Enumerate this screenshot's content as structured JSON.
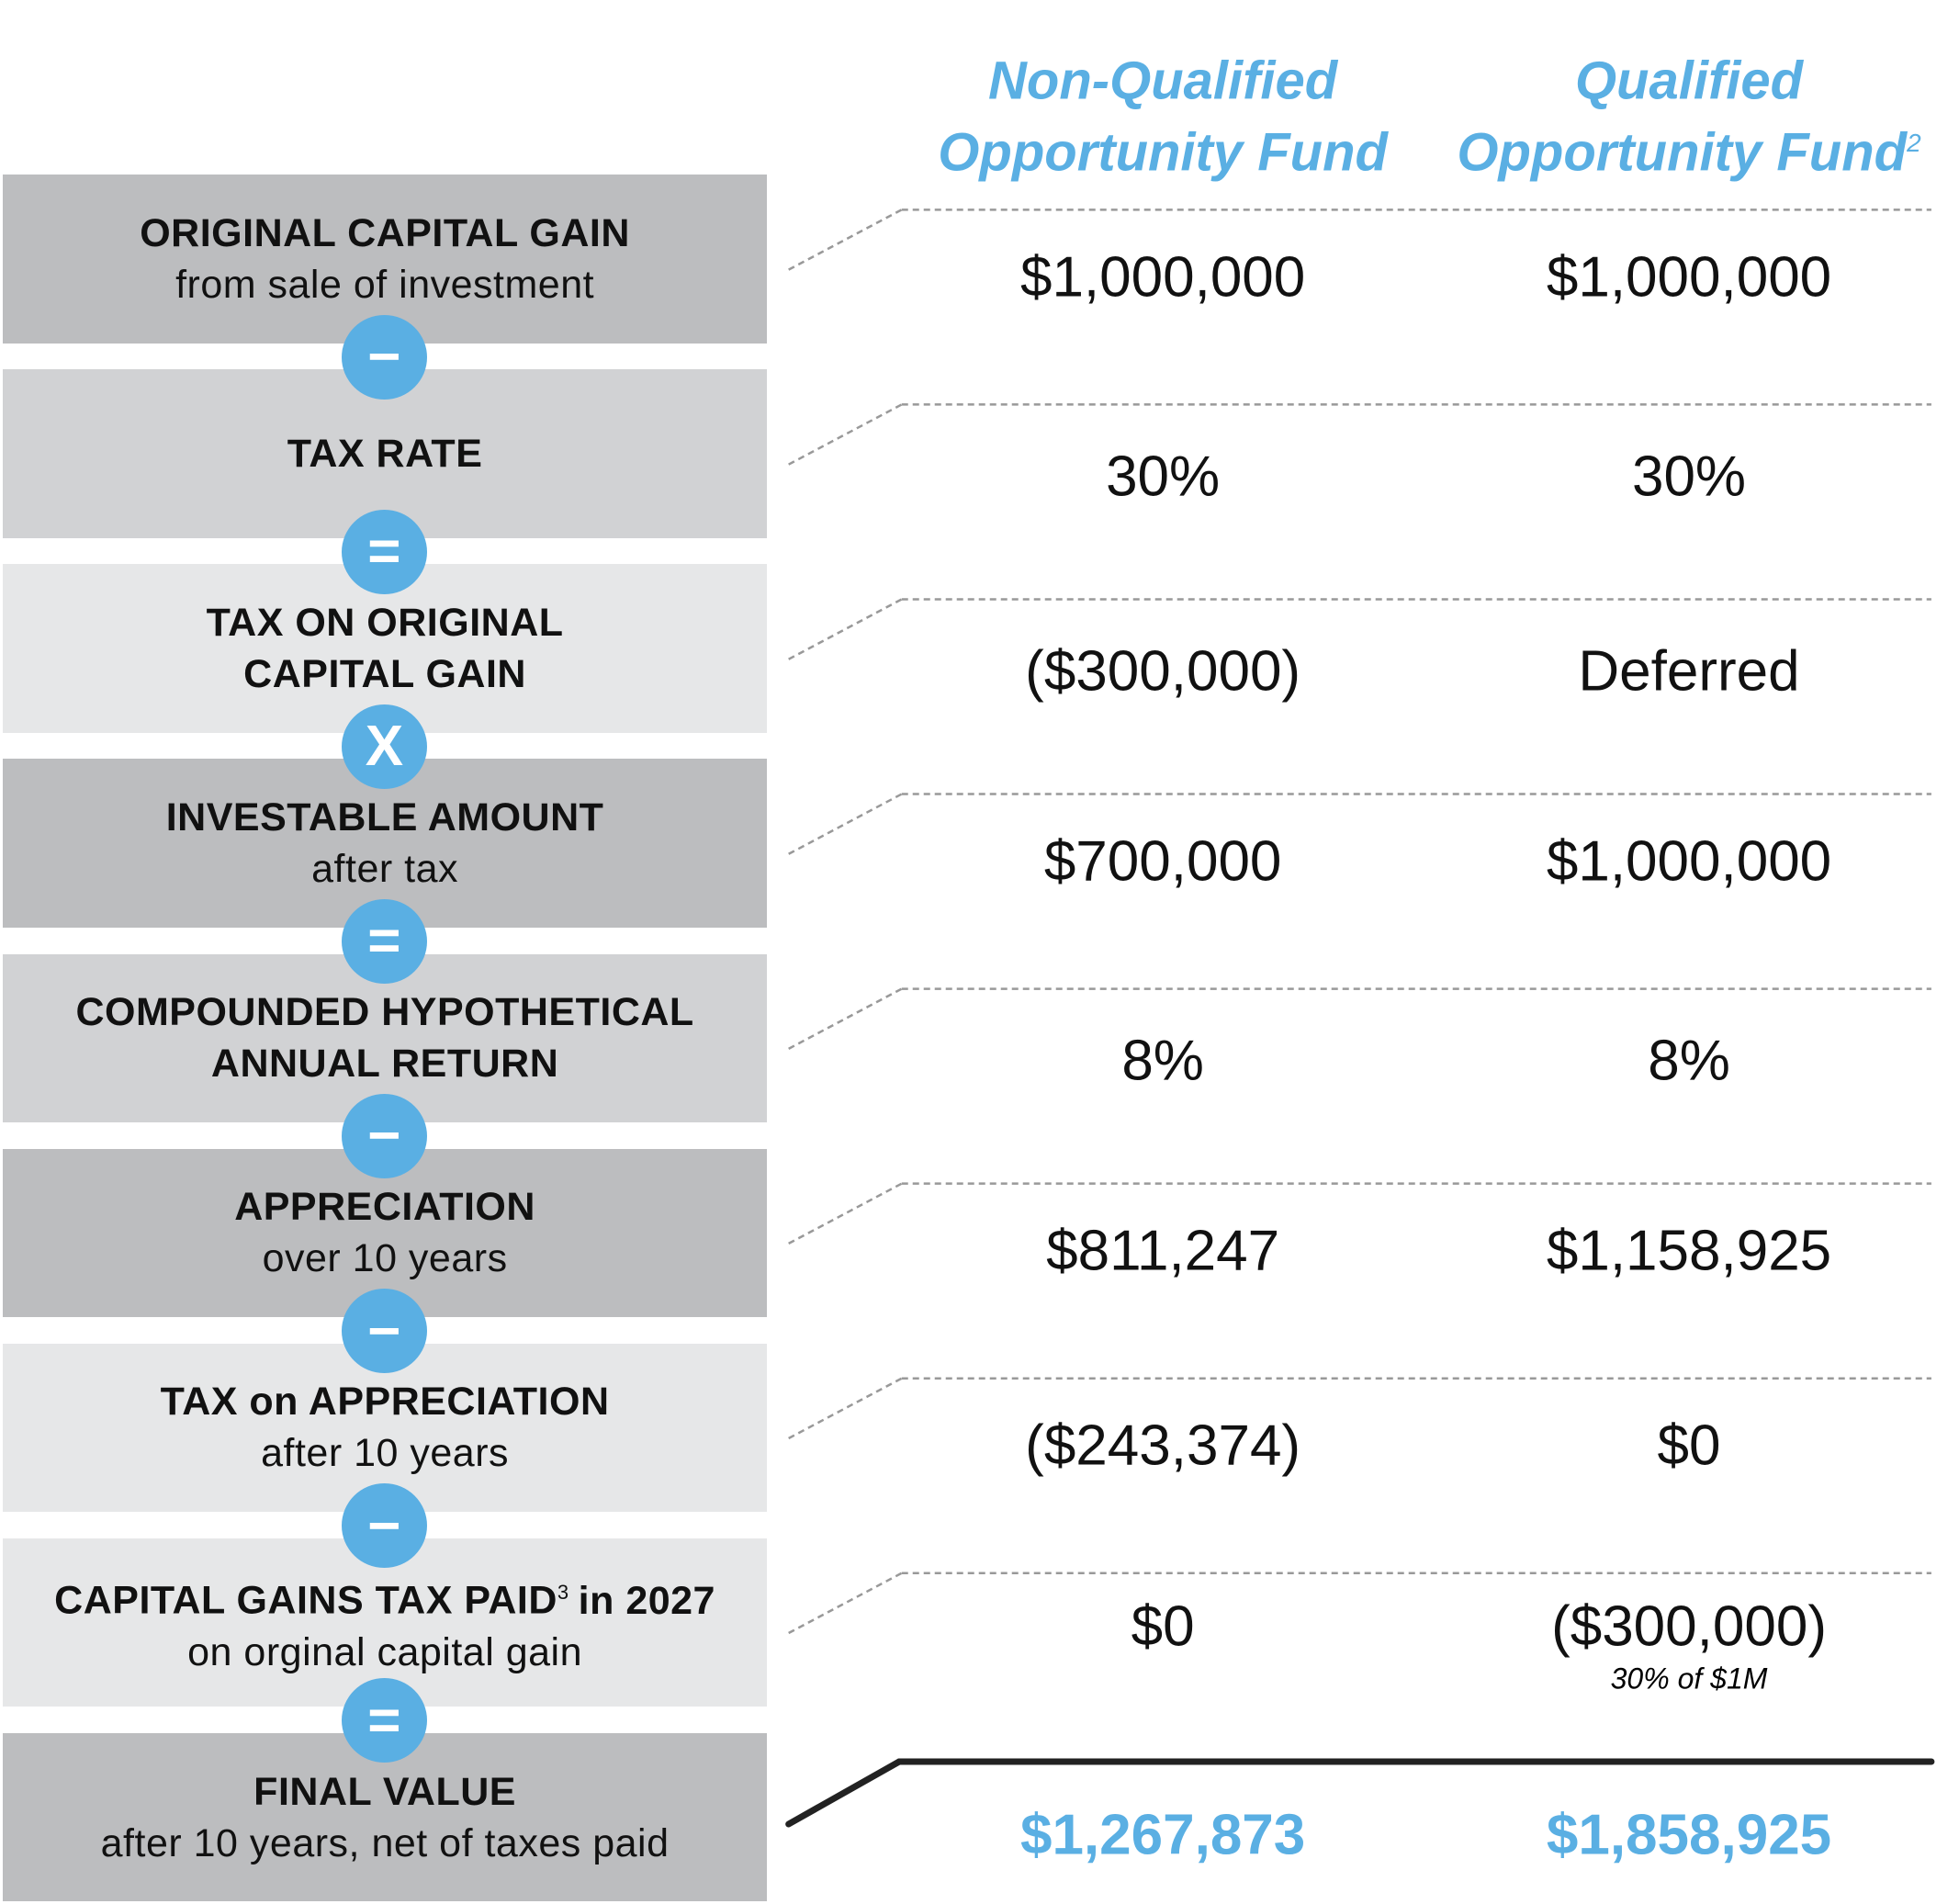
{
  "columns": [
    {
      "title": [
        "Non-Qualified",
        "Opportunity Fund"
      ]
    },
    {
      "title": [
        "Qualified",
        "Opportunity Fund"
      ],
      "note": "2"
    }
  ],
  "rows": [
    {
      "label": [
        "ORIGINAL CAPITAL GAIN"
      ],
      "sublabel": "from sale of investment",
      "values": [
        "$1,000,000",
        "$1,000,000"
      ]
    },
    {
      "label": [
        "TAX RATE"
      ],
      "values": [
        "30%",
        "30%"
      ],
      "operator": "−"
    },
    {
      "label": [
        "TAX ON ORIGINAL",
        "CAPITAL GAIN"
      ],
      "values": [
        "($300,000)",
        "Deferred"
      ],
      "operator": "="
    },
    {
      "label": [
        "INVESTABLE AMOUNT"
      ],
      "sublabel": "after tax",
      "values": [
        "$700,000",
        "$1,000,000"
      ],
      "operator": "X"
    },
    {
      "label": [
        "COMPOUNDED HYPOTHETICAL",
        "ANNUAL RETURN"
      ],
      "values": [
        "8%",
        "8%"
      ],
      "operator": "="
    },
    {
      "label": [
        "APPRECIATION"
      ],
      "sublabel": "over 10 years",
      "values": [
        "$811,247",
        "$1,158,925"
      ],
      "operator": "−"
    },
    {
      "label": [
        "TAX on APPRECIATION"
      ],
      "sublabel": "after 10 years",
      "values": [
        "($243,374)",
        "$0"
      ],
      "operator": "−"
    },
    {
      "label": [
        "CAPITAL GAINS TAX PAID"
      ],
      "label_note": "3",
      "label_suffix": "in 2027",
      "sublabel": "on orginal capital gain",
      "values": [
        "$0",
        "($300,000)"
      ],
      "value_notes": [
        null,
        "30% of $1M"
      ],
      "operator": "−"
    },
    {
      "label": [
        "FINAL VALUE"
      ],
      "sublabel": "after 10 years, net of taxes paid",
      "values": [
        "$1,267,873",
        "$1,858,925"
      ],
      "operator": "="
    }
  ]
}
